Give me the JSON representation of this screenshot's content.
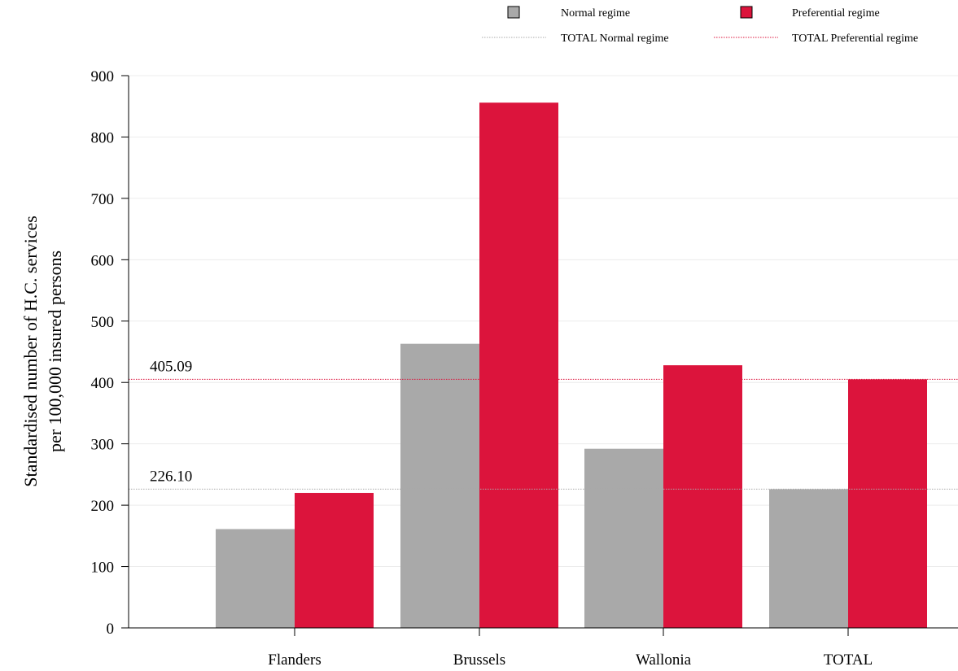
{
  "chart_data": {
    "type": "bar",
    "title": "",
    "ylabel_lines": [
      "Standardised number of H.C. services",
      "per 100,000 insured persons"
    ],
    "xlabel": "",
    "categories": [
      "Flanders",
      "Brussels",
      "Wallonia",
      "TOTAL"
    ],
    "series": [
      {
        "name": "Normal regime",
        "color": "#a9a9a9",
        "values": [
          161,
          463,
          292,
          226.1
        ]
      },
      {
        "name": "Preferential regime",
        "color": "#dc143c",
        "values": [
          220,
          856,
          428,
          405.09
        ]
      }
    ],
    "reference_lines": [
      {
        "name": "TOTAL Normal regime",
        "value": 226.1,
        "label": "226.10",
        "color": "#a9a9a9",
        "style": "dotted"
      },
      {
        "name": "TOTAL Preferential regime",
        "value": 405.09,
        "label": "405.09",
        "color": "#dc143c",
        "style": "dotted"
      }
    ],
    "ylim": [
      0,
      900
    ],
    "yticks": [
      0,
      100,
      200,
      300,
      400,
      500,
      600,
      700,
      800,
      900
    ],
    "grid": true,
    "legend_position": "top-right"
  }
}
